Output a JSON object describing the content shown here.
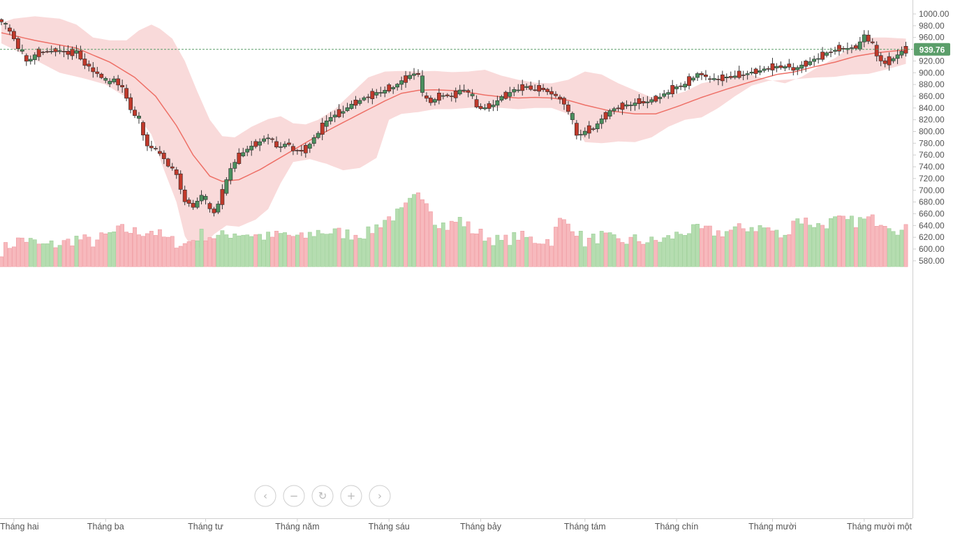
{
  "chart_data": {
    "type": "candlestick",
    "title": "",
    "price_axis": {
      "min": 570,
      "max": 1010,
      "ticks": [
        "1000.00",
        "980.00",
        "960.00",
        "940.00",
        "920.00",
        "900.00",
        "880.00",
        "860.00",
        "840.00",
        "820.00",
        "800.00",
        "780.00",
        "760.00",
        "740.00",
        "720.00",
        "700.00",
        "680.00",
        "660.00",
        "640.00",
        "620.00",
        "600.00",
        "580.00"
      ]
    },
    "x_axis": {
      "labels": [
        "Tháng hai",
        "Tháng ba",
        "Tháng tư",
        "Tháng năm",
        "Tháng sáu",
        "Tháng bảy",
        "Tháng tám",
        "Tháng chín",
        "Tháng mười",
        "Tháng mười một"
      ]
    },
    "last_price": "939.76",
    "colors": {
      "up_body": "#4a8f5e",
      "down_body": "#c0392b",
      "up_volume": "#b5ddb0",
      "down_volume": "#f7b9bd",
      "band_fill": "#f8d3d3",
      "middle_line": "#ee7067",
      "price_tag": "#5b9e6a",
      "price_line": "#5b9e6a"
    },
    "indicators": [
      "Bollinger Bands",
      "Volume"
    ],
    "anchors": {
      "close": [
        [
          0,
          985
        ],
        [
          2,
          970
        ],
        [
          4,
          942
        ],
        [
          6,
          918
        ],
        [
          8,
          930
        ],
        [
          10,
          936
        ],
        [
          12,
          935
        ],
        [
          14,
          937
        ],
        [
          16,
          932
        ],
        [
          18,
          936
        ],
        [
          20,
          912
        ],
        [
          23,
          898
        ],
        [
          25,
          882
        ],
        [
          27,
          888
        ],
        [
          29,
          872
        ],
        [
          31,
          838
        ],
        [
          33,
          815
        ],
        [
          35,
          775
        ],
        [
          38,
          762
        ],
        [
          40,
          742
        ],
        [
          42,
          725
        ],
        [
          44,
          680
        ],
        [
          46,
          672
        ],
        [
          48,
          690
        ],
        [
          50,
          668
        ],
        [
          51,
          660
        ],
        [
          53,
          695
        ],
        [
          55,
          738
        ],
        [
          58,
          765
        ],
        [
          61,
          778
        ],
        [
          64,
          790
        ],
        [
          66,
          772
        ],
        [
          68,
          778
        ],
        [
          70,
          768
        ],
        [
          72,
          765
        ],
        [
          74,
          778
        ],
        [
          77,
          808
        ],
        [
          79,
          825
        ],
        [
          81,
          830
        ],
        [
          84,
          845
        ],
        [
          87,
          856
        ],
        [
          90,
          865
        ],
        [
          93,
          872
        ],
        [
          95,
          880
        ],
        [
          98,
          895
        ],
        [
          100,
          898
        ],
        [
          101,
          860
        ],
        [
          103,
          850
        ],
        [
          106,
          862
        ],
        [
          108,
          858
        ],
        [
          110,
          870
        ],
        [
          112,
          868
        ],
        [
          114,
          840
        ],
        [
          117,
          840
        ],
        [
          120,
          858
        ],
        [
          123,
          870
        ],
        [
          126,
          875
        ],
        [
          128,
          870
        ],
        [
          130,
          872
        ],
        [
          132,
          862
        ],
        [
          134,
          855
        ],
        [
          136,
          835
        ],
        [
          138,
          792
        ],
        [
          140,
          800
        ],
        [
          142,
          805
        ],
        [
          144,
          820
        ],
        [
          146,
          835
        ],
        [
          149,
          842
        ],
        [
          152,
          848
        ],
        [
          155,
          850
        ],
        [
          158,
          858
        ],
        [
          161,
          872
        ],
        [
          164,
          880
        ],
        [
          167,
          898
        ],
        [
          170,
          888
        ],
        [
          173,
          890
        ],
        [
          176,
          894
        ],
        [
          179,
          898
        ],
        [
          182,
          903
        ],
        [
          185,
          909
        ],
        [
          188,
          910
        ],
        [
          190,
          905
        ],
        [
          193,
          915
        ],
        [
          196,
          925
        ],
        [
          199,
          936
        ],
        [
          202,
          941
        ],
        [
          205,
          941
        ],
        [
          207,
          963
        ],
        [
          209,
          946
        ],
        [
          210,
          927
        ],
        [
          212,
          915
        ],
        [
          214,
          925
        ],
        [
          216,
          935
        ],
        [
          217,
          940
        ]
      ],
      "bb_mid": [
        [
          0,
          968
        ],
        [
          8,
          955
        ],
        [
          18,
          942
        ],
        [
          26,
          918
        ],
        [
          32,
          892
        ],
        [
          37,
          860
        ],
        [
          42,
          810
        ],
        [
          46,
          760
        ],
        [
          50,
          724
        ],
        [
          53,
          715
        ],
        [
          57,
          718
        ],
        [
          62,
          735
        ],
        [
          68,
          760
        ],
        [
          74,
          785
        ],
        [
          80,
          808
        ],
        [
          86,
          830
        ],
        [
          92,
          852
        ],
        [
          96,
          865
        ],
        [
          100,
          870
        ],
        [
          104,
          871
        ],
        [
          110,
          869
        ],
        [
          116,
          862
        ],
        [
          120,
          859
        ],
        [
          124,
          857
        ],
        [
          128,
          858
        ],
        [
          132,
          857
        ],
        [
          136,
          853
        ],
        [
          140,
          845
        ],
        [
          146,
          835
        ],
        [
          152,
          830
        ],
        [
          157,
          830
        ],
        [
          162,
          842
        ],
        [
          168,
          858
        ],
        [
          174,
          872
        ],
        [
          180,
          885
        ],
        [
          186,
          897
        ],
        [
          190,
          901
        ],
        [
          195,
          910
        ],
        [
          200,
          918
        ],
        [
          205,
          928
        ],
        [
          210,
          934
        ],
        [
          217,
          939
        ]
      ],
      "bb_upper": [
        [
          0,
          985
        ],
        [
          3,
          992
        ],
        [
          8,
          996
        ],
        [
          14,
          992
        ],
        [
          18,
          982
        ],
        [
          22,
          960
        ],
        [
          26,
          955
        ],
        [
          30,
          955
        ],
        [
          33,
          972
        ],
        [
          36,
          982
        ],
        [
          38,
          975
        ],
        [
          41,
          958
        ],
        [
          44,
          920
        ],
        [
          47,
          868
        ],
        [
          50,
          820
        ],
        [
          53,
          792
        ],
        [
          56,
          790
        ],
        [
          60,
          808
        ],
        [
          64,
          821
        ],
        [
          67,
          826
        ],
        [
          70,
          814
        ],
        [
          73,
          812
        ],
        [
          76,
          820
        ],
        [
          80,
          838
        ],
        [
          84,
          865
        ],
        [
          88,
          892
        ],
        [
          92,
          902
        ],
        [
          96,
          903
        ],
        [
          100,
          902
        ],
        [
          104,
          903
        ],
        [
          108,
          901
        ],
        [
          112,
          902
        ],
        [
          116,
          905
        ],
        [
          120,
          895
        ],
        [
          124,
          888
        ],
        [
          128,
          883
        ],
        [
          132,
          882
        ],
        [
          136,
          888
        ],
        [
          140,
          902
        ],
        [
          144,
          897
        ],
        [
          148,
          882
        ],
        [
          152,
          870
        ],
        [
          156,
          858
        ],
        [
          160,
          860
        ],
        [
          164,
          868
        ],
        [
          168,
          882
        ],
        [
          172,
          888
        ],
        [
          176,
          895
        ],
        [
          180,
          896
        ],
        [
          184,
          888
        ],
        [
          188,
          882
        ],
        [
          192,
          893
        ],
        [
          196,
          910
        ],
        [
          200,
          925
        ],
        [
          204,
          945
        ],
        [
          208,
          960
        ],
        [
          212,
          960
        ],
        [
          217,
          958
        ]
      ],
      "bb_lower": [
        [
          0,
          950
        ],
        [
          8,
          922
        ],
        [
          14,
          900
        ],
        [
          20,
          890
        ],
        [
          25,
          880
        ],
        [
          30,
          858
        ],
        [
          33,
          822
        ],
        [
          36,
          795
        ],
        [
          39,
          735
        ],
        [
          42,
          680
        ],
        [
          44,
          622
        ],
        [
          46,
          600
        ],
        [
          48,
          603
        ],
        [
          51,
          625
        ],
        [
          54,
          640
        ],
        [
          57,
          638
        ],
        [
          61,
          650
        ],
        [
          64,
          668
        ],
        [
          67,
          712
        ],
        [
          70,
          748
        ],
        [
          74,
          753
        ],
        [
          78,
          745
        ],
        [
          82,
          734
        ],
        [
          86,
          738
        ],
        [
          90,
          755
        ],
        [
          93,
          820
        ],
        [
          96,
          830
        ],
        [
          100,
          833
        ],
        [
          104,
          838
        ],
        [
          108,
          838
        ],
        [
          112,
          840
        ],
        [
          116,
          842
        ],
        [
          120,
          840
        ],
        [
          124,
          838
        ],
        [
          128,
          840
        ],
        [
          132,
          840
        ],
        [
          136,
          830
        ],
        [
          140,
          782
        ],
        [
          144,
          780
        ],
        [
          148,
          783
        ],
        [
          152,
          782
        ],
        [
          156,
          790
        ],
        [
          160,
          808
        ],
        [
          164,
          820
        ],
        [
          168,
          824
        ],
        [
          172,
          840
        ],
        [
          176,
          860
        ],
        [
          180,
          878
        ],
        [
          184,
          886
        ],
        [
          188,
          888
        ],
        [
          192,
          890
        ],
        [
          196,
          892
        ],
        [
          200,
          893
        ],
        [
          204,
          897
        ],
        [
          208,
          898
        ],
        [
          212,
          905
        ],
        [
          217,
          915
        ]
      ]
    },
    "volume_levels": {
      "note": "volume in chart price units (bars drawn from 570)",
      "anchors": [
        [
          0,
          598
        ],
        [
          5,
          618
        ],
        [
          10,
          605
        ],
        [
          15,
          610
        ],
        [
          18,
          618
        ],
        [
          22,
          612
        ],
        [
          26,
          625
        ],
        [
          29,
          633
        ],
        [
          33,
          628
        ],
        [
          36,
          632
        ],
        [
          40,
          615
        ],
        [
          44,
          608
        ],
        [
          48,
          625
        ],
        [
          52,
          620
        ],
        [
          56,
          628
        ],
        [
          60,
          625
        ],
        [
          64,
          620
        ],
        [
          68,
          625
        ],
        [
          72,
          618
        ],
        [
          76,
          630
        ],
        [
          80,
          628
        ],
        [
          84,
          625
        ],
        [
          88,
          627
        ],
        [
          92,
          650
        ],
        [
          96,
          662
        ],
        [
          98,
          678
        ],
        [
          100,
          690
        ],
        [
          102,
          688
        ],
        [
          104,
          650
        ],
        [
          107,
          638
        ],
        [
          110,
          650
        ],
        [
          113,
          632
        ],
        [
          116,
          622
        ],
        [
          120,
          612
        ],
        [
          124,
          622
        ],
        [
          128,
          615
        ],
        [
          132,
          615
        ],
        [
          134,
          648
        ],
        [
          137,
          640
        ],
        [
          140,
          612
        ],
        [
          144,
          622
        ],
        [
          148,
          612
        ],
        [
          152,
          616
        ],
        [
          156,
          612
        ],
        [
          160,
          618
        ],
        [
          164,
          630
        ],
        [
          168,
          632
        ],
        [
          172,
          628
        ],
        [
          176,
          632
        ],
        [
          180,
          638
        ],
        [
          184,
          635
        ],
        [
          188,
          618
        ],
        [
          190,
          652
        ],
        [
          193,
          648
        ],
        [
          196,
          640
        ],
        [
          200,
          648
        ],
        [
          204,
          646
        ],
        [
          208,
          650
        ],
        [
          212,
          648
        ],
        [
          216,
          630
        ],
        [
          217,
          632
        ]
      ]
    }
  },
  "controls": {
    "prev_icon": "‹",
    "zoom_out_icon": "−",
    "reset_icon": "↻",
    "zoom_in_icon": "+",
    "next_icon": "›"
  }
}
